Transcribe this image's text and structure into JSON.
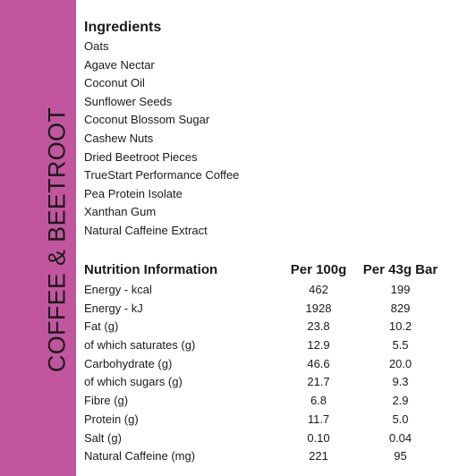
{
  "side_title": "COFFEE & BEETROOT",
  "colors": {
    "band": "#c2569e",
    "text": "#1a1a1a",
    "background": "#ffffff"
  },
  "ingredients": {
    "heading": "Ingredients",
    "items": [
      "Oats",
      "Agave Nectar",
      "Coconut Oil",
      "Sunflower Seeds",
      "Coconut Blossom Sugar",
      "Cashew Nuts",
      "Dried Beetroot Pieces",
      "TrueStart Performance Coffee",
      "Pea Protein Isolate",
      "Xanthan Gum",
      "Natural Caffeine Extract"
    ]
  },
  "nutrition": {
    "heading": "Nutrition Information",
    "col_per100": "Per 100g",
    "col_per43": "Per 43g Bar",
    "rows": [
      {
        "label": "Energy - kcal",
        "per100": "462",
        "per43": "199"
      },
      {
        "label": "Energy - kJ",
        "per100": "1928",
        "per43": "829"
      },
      {
        "label": "Fat (g)",
        "per100": "23.8",
        "per43": "10.2"
      },
      {
        "label": "of which saturates (g)",
        "per100": "12.9",
        "per43": "5.5"
      },
      {
        "label": "Carbohydrate (g)",
        "per100": "46.6",
        "per43": "20.0"
      },
      {
        "label": "of which sugars (g)",
        "per100": "21.7",
        "per43": "9.3"
      },
      {
        "label": "Fibre (g)",
        "per100": "6.8",
        "per43": "2.9"
      },
      {
        "label": "Protein (g)",
        "per100": "11.7",
        "per43": "5.0"
      },
      {
        "label": "Salt (g)",
        "per100": "0.10",
        "per43": "0.04"
      },
      {
        "label": "Natural Caffeine (mg)",
        "per100": "221",
        "per43": "95"
      }
    ]
  }
}
